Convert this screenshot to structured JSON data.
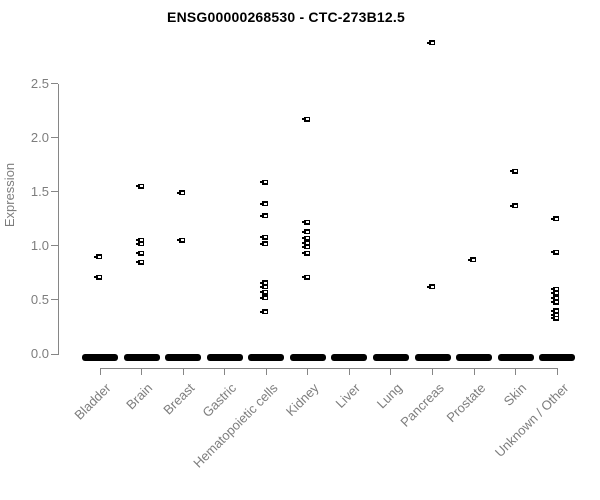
{
  "chart_data": {
    "type": "scatter",
    "subtype": "strip-plot",
    "title": "ENSG00000268530 - CTC-273B12.5",
    "xlabel": "",
    "ylabel": "Expression",
    "ylim": [
      0.0,
      2.5
    ],
    "yticks": [
      0.0,
      0.5,
      1.0,
      1.5,
      2.0,
      2.5
    ],
    "grid": false,
    "legend_position": "none",
    "marker": "black-square-with-white-slot",
    "categories": [
      "Bladder",
      "Brain",
      "Breast",
      "Gastric",
      "Hematopoietic cells",
      "Kidney",
      "Liver",
      "Lung",
      "Pancreas",
      "Prostate",
      "Skin",
      "Unknown / Other"
    ],
    "series": [
      {
        "category": "Bladder",
        "values": [
          0.9,
          0.71
        ],
        "zero_cluster": true
      },
      {
        "category": "Brain",
        "values": [
          1.55,
          1.05,
          1.02,
          0.93,
          0.85
        ],
        "zero_cluster": true
      },
      {
        "category": "Breast",
        "values": [
          1.49,
          1.05
        ],
        "zero_cluster": true
      },
      {
        "category": "Gastric",
        "values": [],
        "zero_cluster": true
      },
      {
        "category": "Hematopoietic cells",
        "values": [
          1.59,
          1.39,
          1.28,
          1.08,
          1.02,
          0.66,
          0.62,
          0.57,
          0.52,
          0.39
        ],
        "zero_cluster": true
      },
      {
        "category": "Kidney",
        "values": [
          2.17,
          1.22,
          1.13,
          1.07,
          1.03,
          0.99,
          0.93,
          0.71
        ],
        "zero_cluster": true
      },
      {
        "category": "Liver",
        "values": [],
        "zero_cluster": true
      },
      {
        "category": "Lung",
        "values": [],
        "zero_cluster": true
      },
      {
        "category": "Pancreas",
        "values": [
          2.88,
          0.62
        ],
        "zero_cluster": true
      },
      {
        "category": "Prostate",
        "values": [
          0.87
        ],
        "zero_cluster": true
      },
      {
        "category": "Skin",
        "values": [
          1.69,
          1.37
        ],
        "zero_cluster": true
      },
      {
        "category": "Unknown / Other",
        "values": [
          1.25,
          0.94,
          0.6,
          0.56,
          0.52,
          0.48,
          0.4,
          0.36,
          0.33
        ],
        "zero_cluster": true
      }
    ],
    "colors": {
      "marker": "#000000",
      "axis_line": "#868686",
      "axis_text": "#7d7d7d",
      "title": "#000000",
      "background": "#ffffff"
    }
  }
}
